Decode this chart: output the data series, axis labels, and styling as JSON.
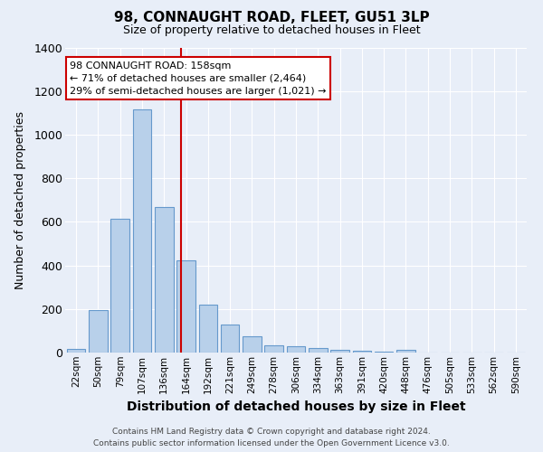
{
  "title": "98, CONNAUGHT ROAD, FLEET, GU51 3LP",
  "subtitle": "Size of property relative to detached houses in Fleet",
  "xlabel": "Distribution of detached houses by size in Fleet",
  "ylabel": "Number of detached properties",
  "footer_line1": "Contains HM Land Registry data © Crown copyright and database right 2024.",
  "footer_line2": "Contains public sector information licensed under the Open Government Licence v3.0.",
  "categories": [
    "22sqm",
    "50sqm",
    "79sqm",
    "107sqm",
    "136sqm",
    "164sqm",
    "192sqm",
    "221sqm",
    "249sqm",
    "278sqm",
    "306sqm",
    "334sqm",
    "363sqm",
    "391sqm",
    "420sqm",
    "448sqm",
    "476sqm",
    "505sqm",
    "533sqm",
    "562sqm",
    "590sqm"
  ],
  "values": [
    15,
    193,
    613,
    1117,
    668,
    425,
    218,
    130,
    75,
    33,
    30,
    20,
    13,
    10,
    5,
    13,
    0,
    0,
    0,
    0,
    0
  ],
  "bar_color": "#b8d0ea",
  "bar_edge_color": "#6699cc",
  "bg_color": "#e8eef8",
  "grid_color": "#ffffff",
  "annotation_line_color": "#cc0000",
  "annotation_text_line1": "98 CONNAUGHT ROAD: 158sqm",
  "annotation_text_line2": "← 71% of detached houses are smaller (2,464)",
  "annotation_text_line3": "29% of semi-detached houses are larger (1,021) →",
  "ylim": [
    0,
    1400
  ],
  "title_fontsize": 11,
  "subtitle_fontsize": 9,
  "ylabel_fontsize": 9,
  "xlabel_fontsize": 10,
  "tick_fontsize": 7.5,
  "footer_fontsize": 6.5,
  "ann_fontsize": 8
}
